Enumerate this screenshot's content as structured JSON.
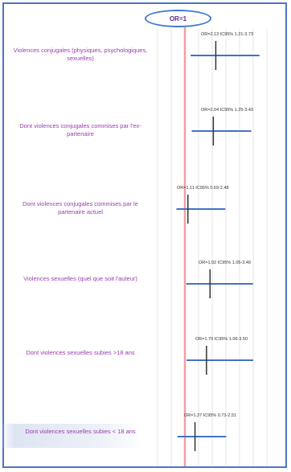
{
  "chart_data": {
    "type": "forest",
    "reference_label": "OR=1",
    "reference_value": 1,
    "xlim": [
      0,
      4
    ],
    "grid": true,
    "colors": {
      "ci_line": "#4472c4",
      "point_marker": "#333333",
      "reference_line": "#f2a0a0",
      "label_text": "#9b3cb0",
      "frame": "#4a76c2"
    },
    "rows": [
      {
        "label": "Violences conjugales (physiques, psychologiques, sexuelles)",
        "or": 2.13,
        "ci_low": 1.21,
        "ci_high": 3.73,
        "ci_text": "OR=2.13 IC95% 1.21-3.73"
      },
      {
        "label": "Dont violences conjugales commises par l'ex-partenaire",
        "or": 2.04,
        "ci_low": 1.25,
        "ci_high": 3.43,
        "ci_text": "OR=2.04 IC95% 1.25-3.43"
      },
      {
        "label": "Dont violences conjugales commises par le partenaire actuel",
        "or": 1.11,
        "ci_low": 0.69,
        "ci_high": 2.48,
        "ci_text": "OR=1.11 IC95% 0.69-2.48"
      },
      {
        "label": "Violences sexuelles (quel que soit l'auteur)",
        "or": 1.92,
        "ci_low": 1.05,
        "ci_high": 3.49,
        "ci_text": "OR=1.92 IC95% 1.05-3.49"
      },
      {
        "label": "Dont violences sexuelles subies >18 ans",
        "or": 1.79,
        "ci_low": 1.06,
        "ci_high": 3.5,
        "ci_text": "OR=1.79 IC95% 1.06-3.50"
      },
      {
        "label": "Dont violences sexuelles subies < 18 ans",
        "or": 1.37,
        "ci_low": 0.73,
        "ci_high": 2.51,
        "ci_text": "OR=1.37 IC95% 0.73-2.51"
      }
    ]
  }
}
